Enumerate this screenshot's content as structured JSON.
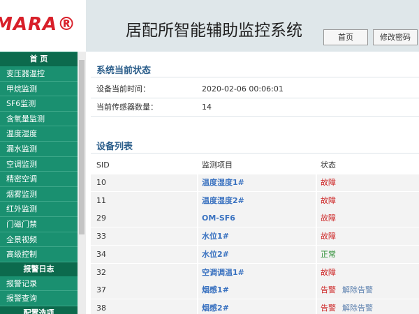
{
  "logo": "MARA®",
  "header": {
    "title": "居配所智能辅助监控系统",
    "buttons": [
      "首页",
      "修改密码"
    ]
  },
  "menu": {
    "sections": [
      {
        "title": "首 页",
        "items": [
          "变压器温控",
          "甲烷监测",
          "SF6监测",
          "含氧量监测",
          "温度湿度",
          "漏水监测",
          "空调监测",
          "精密空调",
          "烟雾监测",
          "红外监测",
          "门磁门禁",
          "全景视频",
          "高级控制"
        ]
      },
      {
        "title": "报警日志",
        "items": [
          "报警记录",
          "报警查询"
        ]
      },
      {
        "title": "配置选项",
        "items": []
      }
    ]
  },
  "status": {
    "title": "系统当前状态",
    "rows": [
      [
        "设备当前时间：",
        "2020-02-06 00:06:01"
      ],
      [
        "当前传感器数量：",
        "14"
      ]
    ]
  },
  "devices": {
    "title": "设备列表",
    "columns": [
      "SID",
      "监测项目",
      "状态"
    ],
    "rows": [
      {
        "sid": "10",
        "item": "温度湿度1#",
        "status": "故障",
        "color": "#cc2222"
      },
      {
        "sid": "11",
        "item": "温度湿度2#",
        "status": "故障",
        "color": "#cc2222"
      },
      {
        "sid": "29",
        "item": "OM-SF6",
        "status": "故障",
        "color": "#cc2222"
      },
      {
        "sid": "33",
        "item": "水位1#",
        "status": "故障",
        "color": "#cc2222"
      },
      {
        "sid": "34",
        "item": "水位2#",
        "status": "正常",
        "color": "#22882a"
      },
      {
        "sid": "32",
        "item": "空调调温1#",
        "status": "故障",
        "color": "#cc2222"
      },
      {
        "sid": "37",
        "item": "烟感1#",
        "status": "告警",
        "color": "#cc2222",
        "action": "解除告警"
      },
      {
        "sid": "38",
        "item": "烟感2#",
        "status": "告警",
        "color": "#cc2222",
        "action": "解除告警"
      }
    ]
  }
}
